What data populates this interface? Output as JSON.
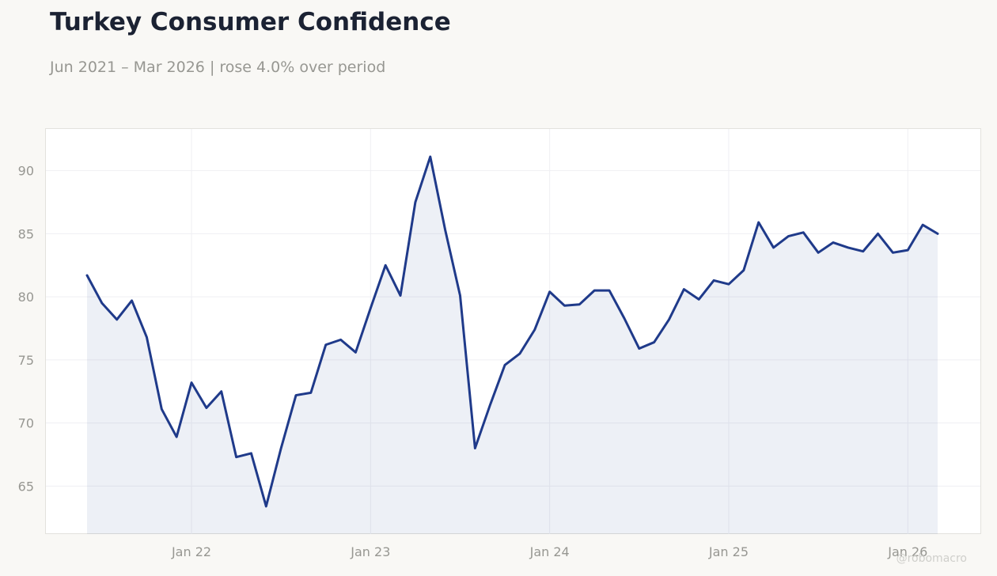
{
  "header": {
    "title": "Turkey Consumer Confidence",
    "subtitle": "Jun 2021 – Mar 2026 | rose 4.0% over period"
  },
  "watermark": "@robomacro",
  "colors": {
    "line": "#1f3a8a",
    "area_fill": "#1f3a8a",
    "background": "#f9f8f5",
    "plot_background": "#ffffff",
    "grid": "#efeff3",
    "tick_text": "#979792"
  },
  "chart_data": {
    "type": "area",
    "x_start": "2021-06",
    "x_end": "2026-03",
    "x_labels": [
      {
        "date": "2022-01",
        "label": "Jan 22"
      },
      {
        "date": "2023-01",
        "label": "Jan 23"
      },
      {
        "date": "2024-01",
        "label": "Jan 24"
      },
      {
        "date": "2025-01",
        "label": "Jan 25"
      },
      {
        "date": "2026-01",
        "label": "Jan 26"
      }
    ],
    "y_ticks": [
      65,
      70,
      75,
      80,
      85,
      90
    ],
    "ylim": [
      61.2,
      93.3
    ],
    "grid": true,
    "legend": "none",
    "series": [
      {
        "values": [
          81.7,
          79.5,
          78.2,
          79.7,
          76.8,
          71.1,
          68.9,
          73.2,
          71.2,
          72.5,
          67.3,
          67.6,
          63.4,
          68.0,
          72.2,
          72.4,
          76.2,
          76.6,
          75.6,
          79.1,
          82.5,
          80.1,
          87.5,
          91.1,
          85.3,
          80.1,
          68.0,
          71.4,
          74.6,
          75.5,
          77.4,
          80.4,
          79.3,
          79.4,
          80.5,
          80.5,
          78.3,
          75.9,
          76.4,
          78.2,
          80.6,
          79.8,
          81.3,
          81.0,
          82.1,
          85.9,
          83.9,
          84.8,
          85.1,
          83.5,
          84.3,
          83.9,
          83.6,
          85.0,
          83.5,
          83.7,
          85.7,
          85.0
        ]
      }
    ]
  }
}
